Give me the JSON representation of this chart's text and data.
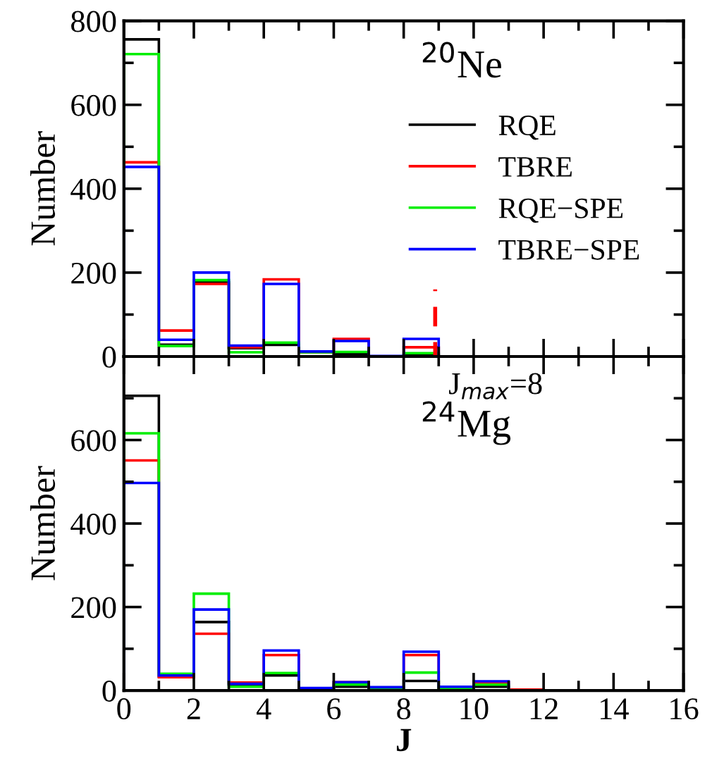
{
  "chart_data": [
    {
      "type": "histogram",
      "ylabel": "Number",
      "bins": [
        0,
        1,
        2,
        3,
        4,
        5,
        6,
        7,
        8,
        9
      ],
      "series": [
        {
          "name": "RQE",
          "color": "#000000",
          "values": [
            756,
            28,
            177,
            20,
            28,
            10,
            6,
            0,
            4
          ]
        },
        {
          "name": "TBRE",
          "color": "#ff0000",
          "values": [
            463,
            62,
            173,
            22,
            184,
            10,
            42,
            0,
            22
          ]
        },
        {
          "name": "RQE−SPE",
          "color": "#00ee00",
          "values": [
            721,
            25,
            182,
            10,
            33,
            10,
            11,
            0,
            8
          ]
        },
        {
          "name": "TBRE−SPE",
          "color": "#0000ff",
          "values": [
            452,
            40,
            200,
            26,
            173,
            12,
            37,
            1,
            42
          ]
        }
      ],
      "xlim": [
        0,
        16
      ],
      "ylim": [
        0,
        800
      ],
      "yticks": [
        0,
        200,
        400,
        600,
        800
      ],
      "tick_labels": "y",
      "legend": "top right",
      "ref_lines": [
        {
          "axis": "x",
          "value": 8.9,
          "color": "#ff0000",
          "line_style": "dashed"
        }
      ],
      "annotations": [
        {
          "text": "$^{20}$Ne"
        }
      ]
    },
    {
      "type": "histogram",
      "xlabel": "J",
      "ylabel": "Number",
      "bins": [
        0,
        1,
        2,
        3,
        4,
        5,
        6,
        7,
        8,
        9,
        10,
        11,
        12
      ],
      "series": [
        {
          "color": "#000000",
          "values": [
            706,
            34,
            164,
            14,
            36,
            4,
            9,
            6,
            23,
            5,
            9,
            0
          ]
        },
        {
          "color": "#ff0000",
          "values": [
            551,
            32,
            136,
            19,
            85,
            4,
            20,
            6,
            85,
            5,
            19,
            2
          ]
        },
        {
          "color": "#00ee00",
          "values": [
            616,
            40,
            232,
            9,
            42,
            4,
            14,
            6,
            43,
            5,
            14,
            0
          ]
        },
        {
          "color": "#0000ff",
          "values": [
            497,
            36,
            194,
            16,
            96,
            6,
            20,
            8,
            93,
            9,
            22,
            0
          ]
        }
      ],
      "xlim": [
        0,
        16
      ],
      "xticks": [
        0,
        2,
        4,
        6,
        8,
        10,
        12,
        14,
        16
      ],
      "ylim": [
        0,
        800
      ],
      "yticks": [
        0,
        200,
        400,
        600,
        {
          "value": 800,
          "label": null
        }
      ],
      "annotations": [
        {
          "text": "$^{24}$Mg"
        },
        {
          "text": "J$_{max}$=8"
        }
      ]
    }
  ]
}
